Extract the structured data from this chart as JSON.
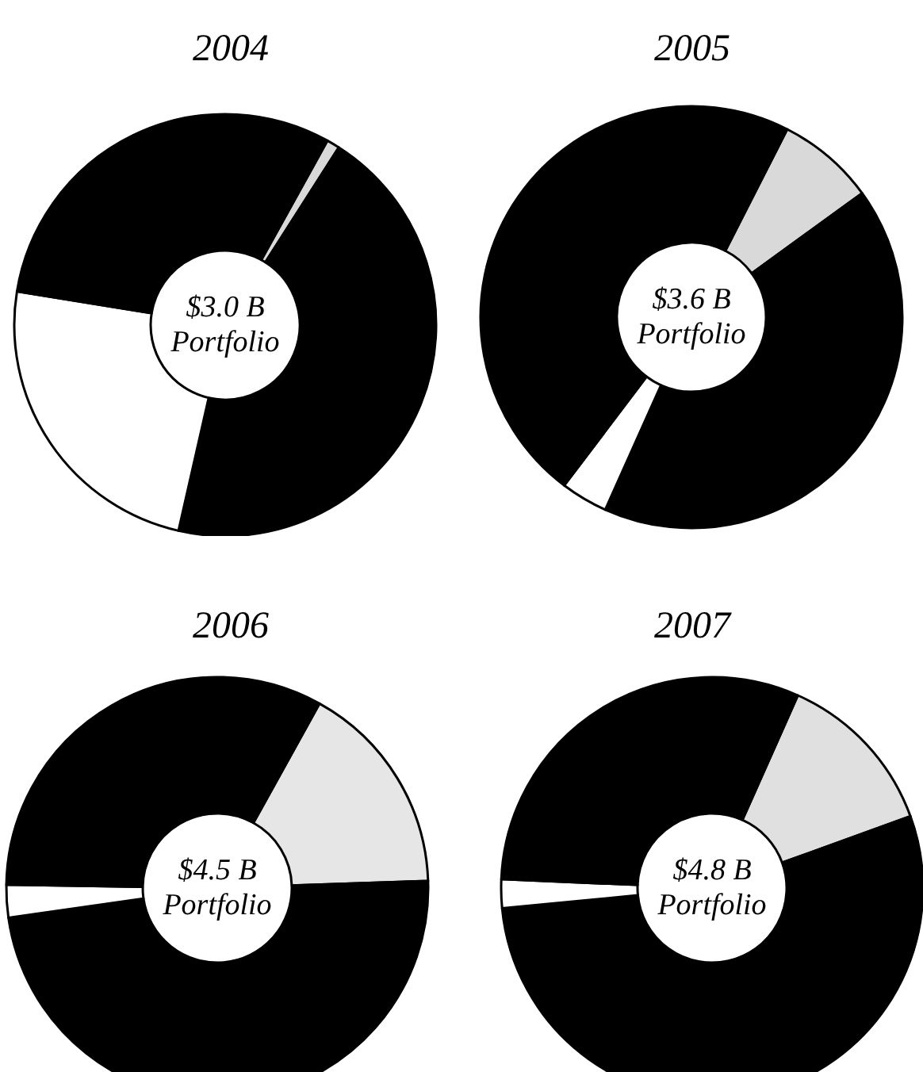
{
  "chart_data": [
    {
      "type": "donut",
      "title": "2004",
      "categories": [
        null,
        null,
        null,
        null
      ],
      "values": [
        1,
        44.5,
        24,
        30.5
      ],
      "colors": [
        "#d9d9d9",
        "#000000",
        "#ffffff",
        "#000000"
      ],
      "annotations": [
        "$3.0 B",
        "Portfolio"
      ]
    },
    {
      "type": "donut",
      "title": "2005",
      "categories": [
        null,
        null,
        null,
        null
      ],
      "values": [
        7.5,
        41.7,
        3.6,
        47.2
      ],
      "colors": [
        "#d9d9d9",
        "#000000",
        "#ffffff",
        "#000000"
      ],
      "annotations": [
        "$3.6 B",
        "Portfolio"
      ]
    },
    {
      "type": "donut",
      "title": "2006",
      "categories": [
        null,
        null,
        null,
        null
      ],
      "values": [
        16.4,
        48.3,
        2.5,
        32.8
      ],
      "colors": [
        "#e6e6e6",
        "#000000",
        "#ffffff",
        "#000000"
      ],
      "annotations": [
        "$4.5 B",
        "Portfolio"
      ]
    },
    {
      "type": "donut",
      "title": "2007",
      "categories": [
        null,
        null,
        null,
        null
      ],
      "values": [
        12.8,
        54,
        2.2,
        31
      ],
      "colors": [
        "#e0e0e0",
        "#000000",
        "#ffffff",
        "#000000"
      ],
      "annotations": [
        "$4.8 B",
        "Portfolio"
      ]
    }
  ]
}
